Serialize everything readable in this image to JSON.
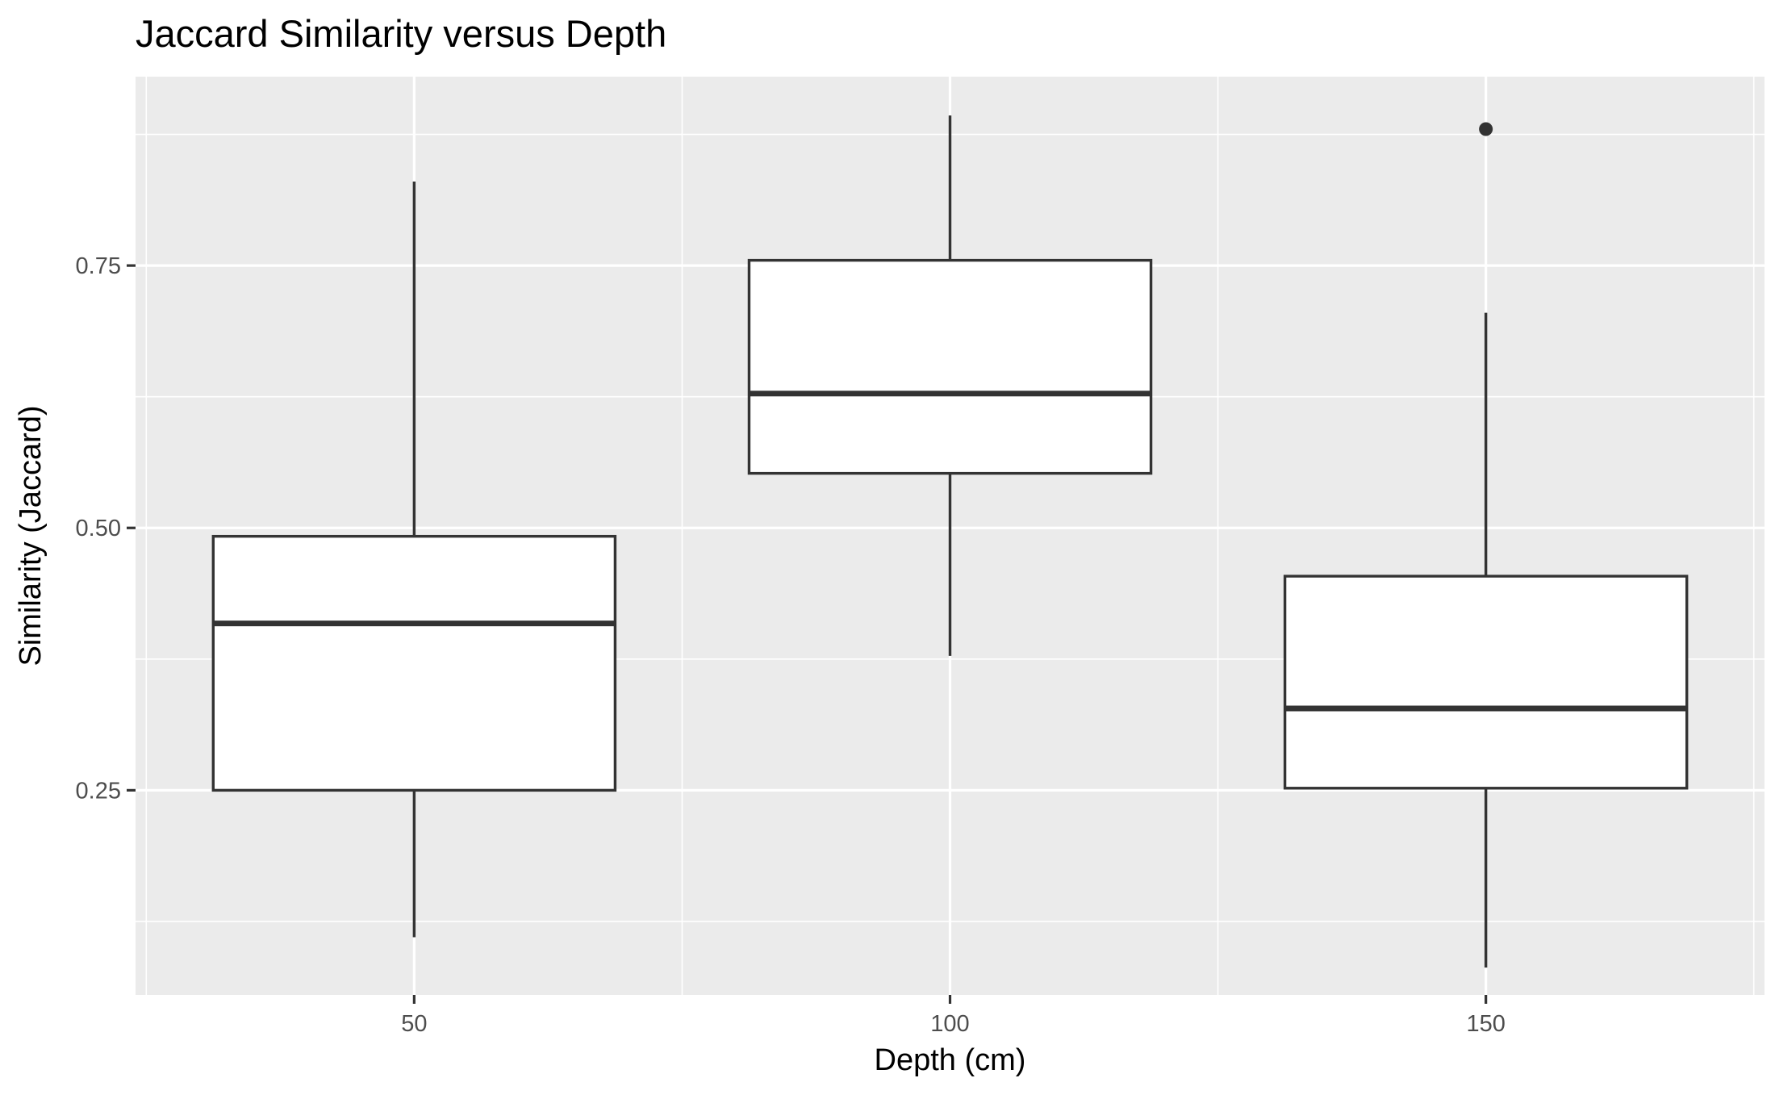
{
  "chart_data": {
    "type": "boxplot",
    "title": "Jaccard Similarity versus Depth",
    "xlabel": "Depth (cm)",
    "ylabel": "Similarity (Jaccard)",
    "xlim": [
      24,
      176
    ],
    "ylim": [
      0.055,
      0.93
    ],
    "x_ticks": [
      50,
      100,
      150
    ],
    "y_ticks": [
      0.25,
      0.5,
      0.75
    ],
    "x_tick_labels": [
      "50",
      "100",
      "150"
    ],
    "y_tick_labels": [
      "0.25",
      "0.50",
      "0.75"
    ],
    "x_minor_gridlines": [
      25,
      75,
      125,
      175
    ],
    "y_minor_gridlines": [
      0.125,
      0.375,
      0.625,
      0.875
    ],
    "box_width": 37.5,
    "grid": true,
    "colors": {
      "panel_background": "#EBEBEB",
      "grid": "#FFFFFF",
      "box_fill": "#FFFFFF",
      "box_stroke": "#333333",
      "axis_text": "#4D4D4D",
      "title_text": "#000000",
      "tick": "#333333"
    },
    "boxes": [
      {
        "group": "50",
        "x": 50,
        "whisker_low": 0.11,
        "q1": 0.25,
        "median": 0.409,
        "q3": 0.492,
        "whisker_high": 0.83,
        "outliers": []
      },
      {
        "group": "100",
        "x": 100,
        "whisker_low": 0.378,
        "q1": 0.552,
        "median": 0.628,
        "q3": 0.755,
        "whisker_high": 0.893,
        "outliers": []
      },
      {
        "group": "150",
        "x": 150,
        "whisker_low": 0.081,
        "q1": 0.252,
        "median": 0.328,
        "q3": 0.454,
        "whisker_high": 0.705,
        "outliers": [
          0.88
        ]
      }
    ]
  }
}
